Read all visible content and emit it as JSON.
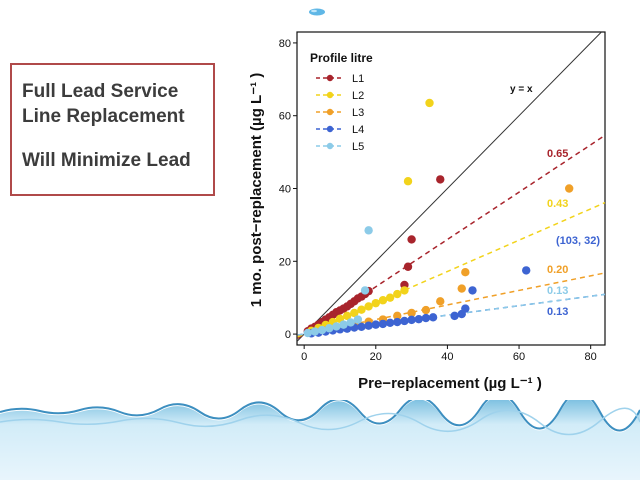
{
  "callout": {
    "line1": "Full Lead Service",
    "line2": "Line Replacement",
    "line3": "Will Minimize Lead"
  },
  "chart_data": {
    "type": "scatter",
    "xlabel": "Pre−replacement (µg L⁻¹ )",
    "ylabel": "1 mo. post−replacement (µg L⁻¹ )",
    "xlim": [
      -2,
      84
    ],
    "ylim": [
      -3,
      83
    ],
    "xticks": [
      0,
      20,
      40,
      60,
      80
    ],
    "yticks": [
      0,
      20,
      40,
      60,
      80
    ],
    "grid": false,
    "legend_title": "Profile litre",
    "legend_position": "top-left",
    "identity_label": "y = x",
    "annotation": "(103, 32)",
    "series": [
      {
        "name": "L1",
        "color": "#a8242c",
        "slope": 0.65,
        "slope_label": "0.65",
        "points": [
          [
            1,
            0.8
          ],
          [
            2,
            1.5
          ],
          [
            3,
            2
          ],
          [
            4,
            2.6
          ],
          [
            5,
            3.3
          ],
          [
            6,
            4
          ],
          [
            7,
            4.6
          ],
          [
            8,
            5.3
          ],
          [
            9,
            6
          ],
          [
            10,
            6.5
          ],
          [
            11,
            7
          ],
          [
            12,
            7.6
          ],
          [
            13,
            8.3
          ],
          [
            14,
            9
          ],
          [
            15,
            9.8
          ],
          [
            16,
            10.3
          ],
          [
            17,
            11
          ],
          [
            18,
            11.8
          ],
          [
            28,
            13.5
          ],
          [
            29,
            18.5
          ],
          [
            30,
            26
          ],
          [
            38,
            42.5
          ]
        ]
      },
      {
        "name": "L2",
        "color": "#f2d31b",
        "slope": 0.43,
        "slope_label": "0.43",
        "points": [
          [
            2,
            0.9
          ],
          [
            4,
            1.7
          ],
          [
            6,
            2.5
          ],
          [
            8,
            3.3
          ],
          [
            10,
            4.2
          ],
          [
            12,
            5
          ],
          [
            14,
            5.8
          ],
          [
            16,
            6.7
          ],
          [
            18,
            7.6
          ],
          [
            20,
            8.5
          ],
          [
            22,
            9.3
          ],
          [
            24,
            10
          ],
          [
            26,
            11
          ],
          [
            28,
            12
          ],
          [
            29,
            42
          ],
          [
            35,
            63.5
          ]
        ]
      },
      {
        "name": "L3",
        "color": "#f0a028",
        "slope": 0.2,
        "slope_label": "0.20",
        "points": [
          [
            6,
            1
          ],
          [
            10,
            1.8
          ],
          [
            14,
            2.6
          ],
          [
            18,
            3.4
          ],
          [
            22,
            4
          ],
          [
            26,
            5
          ],
          [
            30,
            5.8
          ],
          [
            34,
            6.6
          ],
          [
            38,
            9
          ],
          [
            44,
            12.5
          ],
          [
            45,
            17
          ],
          [
            74,
            40
          ]
        ]
      },
      {
        "name": "L4",
        "color": "#3d64d2",
        "slope": 0.13,
        "slope_label": "0.13",
        "points": [
          [
            2,
            0.2
          ],
          [
            4,
            0.4
          ],
          [
            6,
            0.7
          ],
          [
            8,
            1
          ],
          [
            10,
            1.3
          ],
          [
            12,
            1.5
          ],
          [
            14,
            1.8
          ],
          [
            16,
            2
          ],
          [
            18,
            2.3
          ],
          [
            20,
            2.6
          ],
          [
            22,
            2.8
          ],
          [
            24,
            3.1
          ],
          [
            26,
            3.3
          ],
          [
            28,
            3.6
          ],
          [
            30,
            3.9
          ],
          [
            32,
            4.1
          ],
          [
            34,
            4.4
          ],
          [
            36,
            4.6
          ],
          [
            42,
            5
          ],
          [
            44,
            5.5
          ],
          [
            45,
            7
          ],
          [
            47,
            12
          ],
          [
            62,
            17.5
          ]
        ]
      },
      {
        "name": "L5",
        "color": "#8ccbe8",
        "slope": 0.13,
        "slope_label": "0.13",
        "points": [
          [
            1,
            0.3
          ],
          [
            3,
            0.7
          ],
          [
            5,
            1.1
          ],
          [
            7,
            1.6
          ],
          [
            9,
            2.1
          ],
          [
            11,
            2.6
          ],
          [
            13,
            3.2
          ],
          [
            15,
            4
          ],
          [
            17,
            12
          ],
          [
            18,
            28.5
          ]
        ]
      }
    ]
  }
}
